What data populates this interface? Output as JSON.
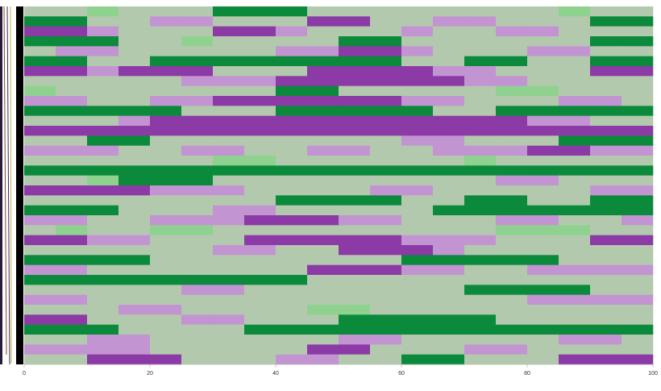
{
  "chart_data": {
    "type": "heatmap",
    "xlim": [
      0,
      100
    ],
    "xticks": [
      0,
      20,
      40,
      60,
      80,
      100
    ],
    "x": [
      0,
      5,
      10,
      15,
      20,
      25,
      30,
      35,
      40,
      45,
      50,
      55,
      60,
      65,
      70,
      75,
      80,
      85,
      90,
      95
    ],
    "colors": [
      "#8b3aa6",
      "#c394d2",
      "#b3c9ad",
      "#8fd28f",
      "#0b8a3c"
    ],
    "values": [
      [
        2,
        2,
        3,
        2,
        2,
        2,
        4,
        4,
        4,
        2,
        2,
        2,
        2,
        2,
        2,
        2,
        2,
        3,
        2,
        2
      ],
      [
        4,
        4,
        2,
        2,
        1,
        1,
        2,
        2,
        2,
        0,
        0,
        2,
        2,
        1,
        1,
        2,
        2,
        2,
        4,
        4
      ],
      [
        0,
        0,
        1,
        2,
        2,
        2,
        0,
        0,
        1,
        2,
        2,
        2,
        1,
        2,
        2,
        1,
        1,
        2,
        2,
        2
      ],
      [
        4,
        4,
        4,
        2,
        2,
        3,
        2,
        2,
        2,
        2,
        4,
        4,
        2,
        2,
        2,
        2,
        2,
        2,
        4,
        4
      ],
      [
        2,
        1,
        1,
        2,
        2,
        2,
        2,
        2,
        1,
        1,
        0,
        0,
        1,
        2,
        2,
        2,
        1,
        1,
        2,
        2
      ],
      [
        4,
        4,
        2,
        2,
        4,
        4,
        4,
        4,
        4,
        4,
        4,
        4,
        2,
        2,
        4,
        4,
        2,
        2,
        4,
        4
      ],
      [
        0,
        0,
        1,
        0,
        0,
        0,
        2,
        2,
        2,
        0,
        0,
        0,
        0,
        1,
        1,
        2,
        2,
        2,
        0,
        0
      ],
      [
        2,
        2,
        2,
        2,
        2,
        1,
        1,
        1,
        0,
        0,
        0,
        0,
        0,
        0,
        1,
        1,
        2,
        2,
        2,
        2
      ],
      [
        3,
        2,
        2,
        2,
        2,
        2,
        2,
        2,
        4,
        4,
        2,
        2,
        2,
        2,
        2,
        3,
        3,
        2,
        2,
        2
      ],
      [
        1,
        1,
        2,
        2,
        1,
        1,
        0,
        0,
        0,
        0,
        0,
        0,
        1,
        1,
        2,
        2,
        2,
        1,
        1,
        2
      ],
      [
        4,
        4,
        4,
        4,
        4,
        2,
        2,
        2,
        4,
        4,
        4,
        4,
        4,
        2,
        2,
        4,
        4,
        4,
        4,
        4
      ],
      [
        2,
        2,
        2,
        1,
        0,
        0,
        0,
        0,
        0,
        0,
        0,
        0,
        0,
        0,
        0,
        0,
        1,
        1,
        2,
        2
      ],
      [
        0,
        0,
        0,
        0,
        0,
        0,
        0,
        0,
        0,
        0,
        0,
        0,
        0,
        0,
        0,
        0,
        0,
        0,
        0,
        0
      ],
      [
        2,
        2,
        4,
        4,
        2,
        2,
        2,
        2,
        2,
        2,
        2,
        2,
        1,
        1,
        2,
        2,
        2,
        4,
        4,
        4
      ],
      [
        1,
        1,
        1,
        2,
        2,
        1,
        1,
        2,
        2,
        1,
        1,
        2,
        2,
        1,
        1,
        1,
        0,
        0,
        1,
        1
      ],
      [
        2,
        2,
        2,
        2,
        2,
        2,
        3,
        3,
        2,
        2,
        2,
        2,
        2,
        2,
        3,
        2,
        2,
        2,
        2,
        2
      ],
      [
        4,
        4,
        4,
        4,
        4,
        4,
        4,
        4,
        4,
        4,
        4,
        4,
        4,
        4,
        4,
        4,
        4,
        4,
        4,
        4
      ],
      [
        2,
        2,
        3,
        4,
        4,
        4,
        2,
        2,
        2,
        2,
        2,
        2,
        2,
        2,
        2,
        1,
        1,
        2,
        2,
        2
      ],
      [
        0,
        0,
        0,
        0,
        1,
        1,
        1,
        2,
        2,
        2,
        2,
        1,
        1,
        2,
        2,
        2,
        2,
        2,
        1,
        1
      ],
      [
        2,
        2,
        2,
        2,
        2,
        2,
        2,
        2,
        4,
        4,
        4,
        4,
        2,
        2,
        4,
        4,
        2,
        2,
        4,
        4
      ],
      [
        4,
        4,
        4,
        2,
        2,
        2,
        1,
        1,
        2,
        2,
        2,
        2,
        2,
        4,
        4,
        4,
        4,
        4,
        4,
        4
      ],
      [
        1,
        1,
        2,
        2,
        1,
        1,
        1,
        0,
        0,
        0,
        1,
        1,
        2,
        2,
        2,
        1,
        1,
        2,
        2,
        1
      ],
      [
        2,
        3,
        2,
        2,
        3,
        3,
        2,
        2,
        2,
        2,
        2,
        2,
        2,
        2,
        2,
        3,
        3,
        3,
        2,
        2
      ],
      [
        0,
        0,
        1,
        1,
        2,
        2,
        2,
        0,
        0,
        0,
        0,
        0,
        1,
        1,
        1,
        2,
        2,
        2,
        0,
        0
      ],
      [
        2,
        2,
        2,
        2,
        2,
        2,
        1,
        1,
        2,
        2,
        0,
        0,
        0,
        1,
        2,
        2,
        2,
        2,
        2,
        2
      ],
      [
        4,
        4,
        4,
        4,
        2,
        2,
        2,
        2,
        2,
        2,
        2,
        2,
        4,
        4,
        4,
        4,
        4,
        2,
        2,
        2
      ],
      [
        1,
        1,
        2,
        2,
        2,
        2,
        2,
        2,
        2,
        0,
        0,
        0,
        1,
        1,
        2,
        2,
        1,
        1,
        1,
        1
      ],
      [
        4,
        4,
        4,
        4,
        4,
        4,
        4,
        4,
        4,
        2,
        2,
        2,
        2,
        2,
        2,
        2,
        2,
        2,
        2,
        2
      ],
      [
        2,
        2,
        2,
        2,
        2,
        1,
        1,
        2,
        2,
        2,
        2,
        2,
        2,
        2,
        4,
        4,
        4,
        4,
        2,
        2
      ],
      [
        1,
        1,
        2,
        2,
        2,
        2,
        2,
        2,
        2,
        2,
        2,
        2,
        2,
        2,
        2,
        2,
        1,
        1,
        1,
        1
      ],
      [
        2,
        2,
        2,
        1,
        1,
        2,
        2,
        2,
        2,
        3,
        3,
        2,
        2,
        2,
        2,
        2,
        2,
        2,
        2,
        2
      ],
      [
        0,
        0,
        2,
        2,
        2,
        1,
        1,
        2,
        2,
        2,
        4,
        4,
        4,
        4,
        4,
        2,
        2,
        2,
        2,
        2
      ],
      [
        4,
        4,
        4,
        2,
        2,
        2,
        2,
        4,
        4,
        4,
        4,
        4,
        4,
        4,
        4,
        4,
        4,
        4,
        4,
        4
      ],
      [
        2,
        2,
        1,
        1,
        2,
        2,
        2,
        2,
        2,
        2,
        1,
        1,
        2,
        2,
        2,
        2,
        2,
        1,
        1,
        2
      ],
      [
        1,
        1,
        1,
        1,
        2,
        2,
        2,
        2,
        2,
        0,
        0,
        2,
        2,
        2,
        1,
        1,
        2,
        2,
        2,
        2
      ],
      [
        2,
        2,
        0,
        0,
        0,
        2,
        2,
        2,
        1,
        1,
        2,
        2,
        4,
        4,
        2,
        2,
        2,
        0,
        0,
        0
      ]
    ]
  }
}
